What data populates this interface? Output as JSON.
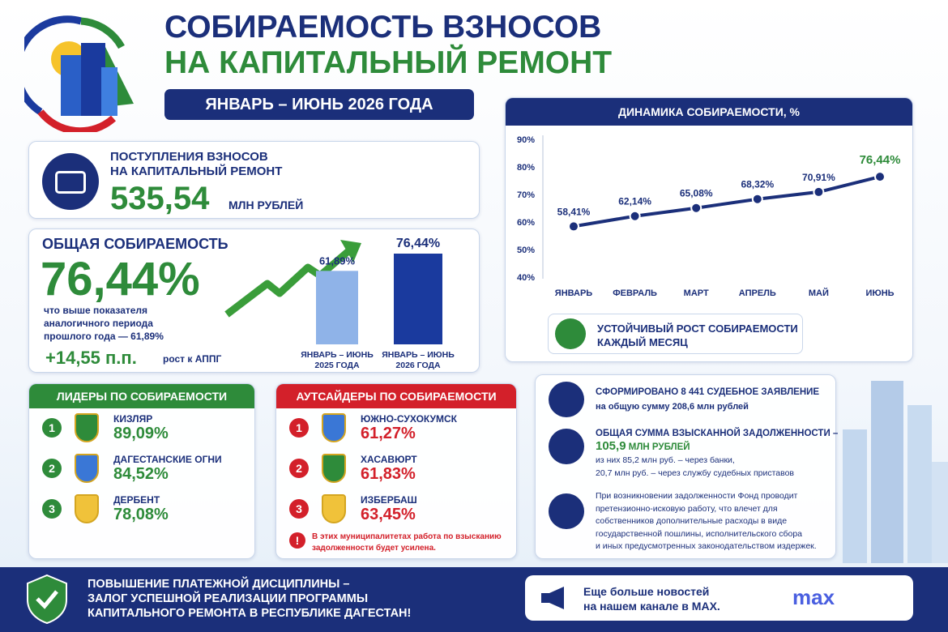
{
  "header": {
    "title_line1": "СОБИРАЕМОСТЬ ВЗНОСОВ",
    "title_line2": "НА КАПИТАЛЬНЫЙ РЕМОНТ",
    "period": "ЯНВАРЬ – ИЮНЬ 2026 ГОДА"
  },
  "receipts": {
    "label_lines": [
      "ПОСТУПЛЕНИЯ ВЗНОСОВ",
      "НА КАПИТАЛЬНЫЙ РЕМОНТ"
    ],
    "amount": "535,54",
    "unit": "МЛН РУБЛЕЙ"
  },
  "collection": {
    "title": "ОБЩАЯ СОБИРАЕМОСТЬ",
    "value": "76,44%",
    "note_lines": [
      "что выше показателя",
      "аналогичного периода",
      "прошлого года — 61,89%"
    ],
    "delta": "+14,55 п.п.",
    "delta_note": "рост к АППГ"
  },
  "chart_data": [
    {
      "type": "bar",
      "categories": [
        "ЯНВАРЬ – ИЮНЬ 2025 ГОДА",
        "ЯНВАРЬ – ИЮНЬ 2026 ГОДА"
      ],
      "values": [
        61.89,
        76.44
      ],
      "value_labels": [
        "61,89%",
        "76,44%"
      ],
      "colors": [
        "#8fb3e8",
        "#1a3a9e"
      ]
    },
    {
      "type": "line",
      "title": "ДИНАМИКА СОБИРАЕМОСТИ, %",
      "categories": [
        "ЯНВАРЬ",
        "ФЕВРАЛЬ",
        "МАРТ",
        "АПРЕЛЬ",
        "МАЙ",
        "ИЮНЬ"
      ],
      "series": [
        {
          "color": "#1b2f7a",
          "values": [
            58.41,
            62.14,
            65.08,
            68.32,
            70.91,
            76.44
          ],
          "value_labels": [
            "58,41%",
            "62,14%",
            "65,08%",
            "68,32%",
            "70,91%",
            "76,44%"
          ]
        }
      ],
      "ylim": [
        40,
        90
      ],
      "yticks": [
        {
          "value": 40,
          "label": "40%"
        },
        {
          "value": 50,
          "label": "50%"
        },
        {
          "value": 60,
          "label": "60%"
        },
        {
          "value": 70,
          "label": "70%"
        },
        {
          "value": 80,
          "label": "80%"
        },
        {
          "value": 90,
          "label": "90%"
        }
      ]
    }
  ],
  "callout": {
    "lines": [
      "УСТОЙЧИВЫЙ РОСТ СОБИРАЕМОСТИ",
      "КАЖДЫЙ МЕСЯЦ"
    ]
  },
  "leaders": {
    "title": "ЛИДЕРЫ ПО СОБИРАЕМОСТИ",
    "rows": [
      {
        "rank": "1",
        "name": "КИЗЛЯР",
        "value": "89,09%"
      },
      {
        "rank": "2",
        "name": "ДАГЕСТАНСКИЕ ОГНИ",
        "value": "84,52%"
      },
      {
        "rank": "3",
        "name": "ДЕРБЕНТ",
        "value": "78,08%"
      }
    ]
  },
  "outsiders": {
    "title": "АУТСАЙДЕРЫ ПО СОБИРАЕМОСТИ",
    "rows": [
      {
        "rank": "1",
        "name": "ЮЖНО-СУХОКУМСК",
        "value": "61,27%"
      },
      {
        "rank": "2",
        "name": "ХАСАВЮРТ",
        "value": "61,83%"
      },
      {
        "rank": "3",
        "name": "ИЗБЕРБАШ",
        "value": "63,45%"
      }
    ],
    "warning_icon": "!",
    "warning_lines": [
      "В этих муниципалитетах работа по взысканию",
      "задолженности будет усилена."
    ]
  },
  "legal": [
    {
      "lines": [
        "СФОРМИРОВАНО 8 441 СУДЕБНОЕ ЗАЯВЛЕНИЕ",
        "на общую сумму 208,6 млн рублей"
      ]
    },
    {
      "title": "ОБЩАЯ СУММА ВЗЫСКАННОЙ ЗАДОЛЖЕННОСТИ –",
      "amount": "105,9",
      "unit": "МЛН РУБЛЕЙ",
      "lines": [
        "из них 85,2 млн руб. – через банки,",
        "20,7 млн руб. – через службу судебных приставов"
      ]
    },
    {
      "lines": [
        "При возникновении задолженности Фонд проводит",
        "претензионно-исковую работу, что влечет для",
        "собственников дополнительные расходы в виде",
        "государственной пошлины, исполнительского сбора",
        "и иных предусмотренных законодательством издержек."
      ]
    }
  ],
  "footer": {
    "lines": [
      "ПОВЫШЕНИЕ ПЛАТЕЖНОЙ ДИСЦИПЛИНЫ –",
      "ЗАЛОГ УСПЕШНОЙ РЕАЛИЗАЦИИ ПРОГРАММЫ",
      "КАПИТАЛЬНОГО РЕМОНТА В РЕСПУБЛИКЕ ДАГЕСТАН!"
    ],
    "news_lines": [
      "Еще больше новостей",
      "на нашем канале в MAX."
    ],
    "logo": "max"
  }
}
